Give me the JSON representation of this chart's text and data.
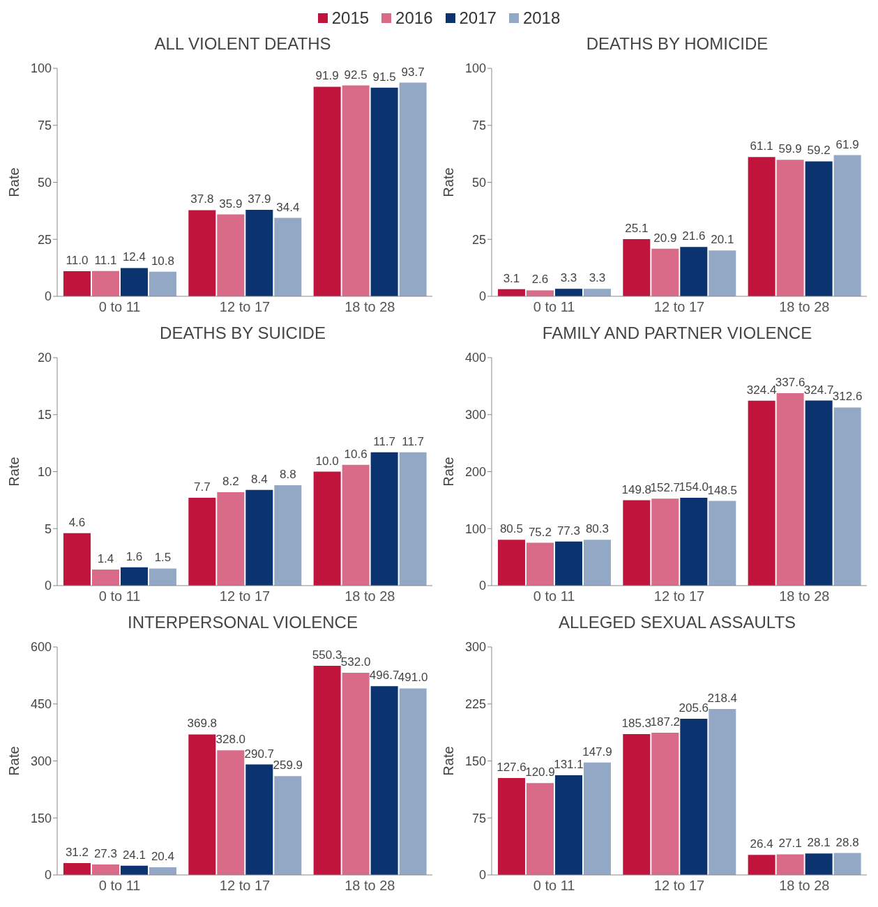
{
  "chart_data": [
    {
      "type": "bar",
      "title": "ALL VIOLENT DEATHS",
      "ylabel": "Rate",
      "categories": [
        "0 to 11",
        "12 to 17",
        "18 to 28"
      ],
      "ylim": [
        0,
        100
      ],
      "yticks": [
        0,
        25,
        50,
        75,
        100
      ],
      "legend": "top",
      "series": [
        {
          "name": "2015",
          "color": "#c0143c",
          "values": [
            11.0,
            37.8,
            91.9
          ],
          "value_labels": [
            "11.0",
            "37.8",
            "91.9"
          ]
        },
        {
          "name": "2016",
          "color": "#d96a88",
          "values": [
            11.1,
            35.9,
            92.5
          ],
          "value_labels": [
            "11.1",
            "35.9",
            "92.5"
          ]
        },
        {
          "name": "2017",
          "color": "#0a3370",
          "values": [
            12.4,
            37.9,
            91.5
          ],
          "value_labels": [
            "12.4",
            "37.9",
            "91.5"
          ]
        },
        {
          "name": "2018",
          "color": "#93a8c4",
          "values": [
            10.8,
            34.4,
            93.7
          ],
          "value_labels": [
            "10.8",
            "34.4",
            "93.7"
          ]
        }
      ]
    },
    {
      "type": "bar",
      "title": "DEATHS BY HOMICIDE",
      "ylabel": "Rate",
      "categories": [
        "0 to 11",
        "12 to 17",
        "18 to 28"
      ],
      "ylim": [
        0,
        100
      ],
      "yticks": [
        0,
        25,
        50,
        75,
        100
      ],
      "series": [
        {
          "color": "#c0143c",
          "values": [
            3.1,
            25.1,
            61.1
          ],
          "value_labels": [
            "3.1",
            "25.1",
            "61.1"
          ]
        },
        {
          "color": "#d96a88",
          "values": [
            2.6,
            20.9,
            59.9
          ],
          "value_labels": [
            "2.6",
            "20.9",
            "59.9"
          ]
        },
        {
          "color": "#0a3370",
          "values": [
            3.3,
            21.6,
            59.2
          ],
          "value_labels": [
            "3.3",
            "21.6",
            "59.2"
          ]
        },
        {
          "color": "#93a8c4",
          "values": [
            3.3,
            20.1,
            61.9
          ],
          "value_labels": [
            "3.3",
            "20.1",
            "61.9"
          ]
        }
      ]
    },
    {
      "type": "bar",
      "title": "DEATHS BY SUICIDE",
      "ylabel": "Rate",
      "categories": [
        "0 to 11",
        "12 to 17",
        "18 to 28"
      ],
      "ylim": [
        0,
        20
      ],
      "yticks": [
        0,
        5,
        10,
        15,
        20
      ],
      "series": [
        {
          "color": "#c0143c",
          "values": [
            4.6,
            7.7,
            10.0
          ],
          "value_labels": [
            "4.6",
            "7.7",
            "10.0"
          ]
        },
        {
          "color": "#d96a88",
          "values": [
            1.4,
            8.2,
            10.6
          ],
          "value_labels": [
            "1.4",
            "8.2",
            "10.6"
          ]
        },
        {
          "color": "#0a3370",
          "values": [
            1.6,
            8.4,
            11.7
          ],
          "value_labels": [
            "1.6",
            "8.4",
            "11.7"
          ]
        },
        {
          "color": "#93a8c4",
          "values": [
            1.5,
            8.8,
            11.7
          ],
          "value_labels": [
            "1.5",
            "8.8",
            "11.7"
          ]
        }
      ]
    },
    {
      "type": "bar",
      "title": "FAMILY AND PARTNER VIOLENCE",
      "ylabel": "Rate",
      "categories": [
        "0 to 11",
        "12 to 17",
        "18 to 28"
      ],
      "ylim": [
        0,
        400
      ],
      "yticks": [
        0,
        100,
        200,
        300,
        400
      ],
      "series": [
        {
          "color": "#c0143c",
          "values": [
            80.5,
            149.8,
            324.4
          ],
          "value_labels": [
            "80.5",
            "149.8",
            "324.4"
          ]
        },
        {
          "color": "#d96a88",
          "values": [
            75.2,
            152.7,
            337.6
          ],
          "value_labels": [
            "75.2",
            "152.7",
            "337.6"
          ]
        },
        {
          "color": "#0a3370",
          "values": [
            77.3,
            154.0,
            324.7
          ],
          "value_labels": [
            "77.3",
            "154.0",
            "324.7"
          ]
        },
        {
          "color": "#93a8c4",
          "values": [
            80.3,
            148.5,
            312.6
          ],
          "value_labels": [
            "80.3",
            "148.5",
            "312.6"
          ]
        }
      ]
    },
    {
      "type": "bar",
      "title": "INTERPERSONAL VIOLENCE",
      "ylabel": "Rate",
      "categories": [
        "0 to 11",
        "12 to 17",
        "18 to 28"
      ],
      "ylim": [
        0,
        600
      ],
      "yticks": [
        0,
        150,
        300,
        450,
        600
      ],
      "series": [
        {
          "color": "#c0143c",
          "values": [
            31.2,
            369.8,
            550.3
          ],
          "value_labels": [
            "31.2",
            "369.8",
            "550.3"
          ]
        },
        {
          "color": "#d96a88",
          "values": [
            27.3,
            328.0,
            532.0
          ],
          "value_labels": [
            "27.3",
            "328.0",
            "532.0"
          ]
        },
        {
          "color": "#0a3370",
          "values": [
            24.1,
            290.7,
            496.7
          ],
          "value_labels": [
            "24.1",
            "290.7",
            "496.7"
          ]
        },
        {
          "color": "#93a8c4",
          "values": [
            20.4,
            259.9,
            491.0
          ],
          "value_labels": [
            "20.4",
            "259.9",
            "491.0"
          ]
        }
      ]
    },
    {
      "type": "bar",
      "title": "ALLEGED SEXUAL ASSAULTS",
      "ylabel": "Rate",
      "categories": [
        "0 to 11",
        "12 to 17",
        "18 to 28"
      ],
      "ylim": [
        0,
        300
      ],
      "yticks": [
        0,
        75,
        150,
        225,
        300
      ],
      "series": [
        {
          "color": "#c0143c",
          "values": [
            127.6,
            185.3,
            26.4
          ],
          "value_labels": [
            "127.6",
            "185.3",
            "26.4"
          ]
        },
        {
          "color": "#d96a88",
          "values": [
            120.9,
            187.2,
            27.1
          ],
          "value_labels": [
            "120.9",
            "187.2",
            "27.1"
          ]
        },
        {
          "color": "#0a3370",
          "values": [
            131.1,
            205.6,
            28.1
          ],
          "value_labels": [
            "131.1",
            "205.6",
            "28.1"
          ]
        },
        {
          "color": "#93a8c4",
          "values": [
            147.9,
            218.4,
            28.8
          ],
          "value_labels": [
            "147.9",
            "218.4",
            "28.8"
          ]
        }
      ]
    }
  ]
}
